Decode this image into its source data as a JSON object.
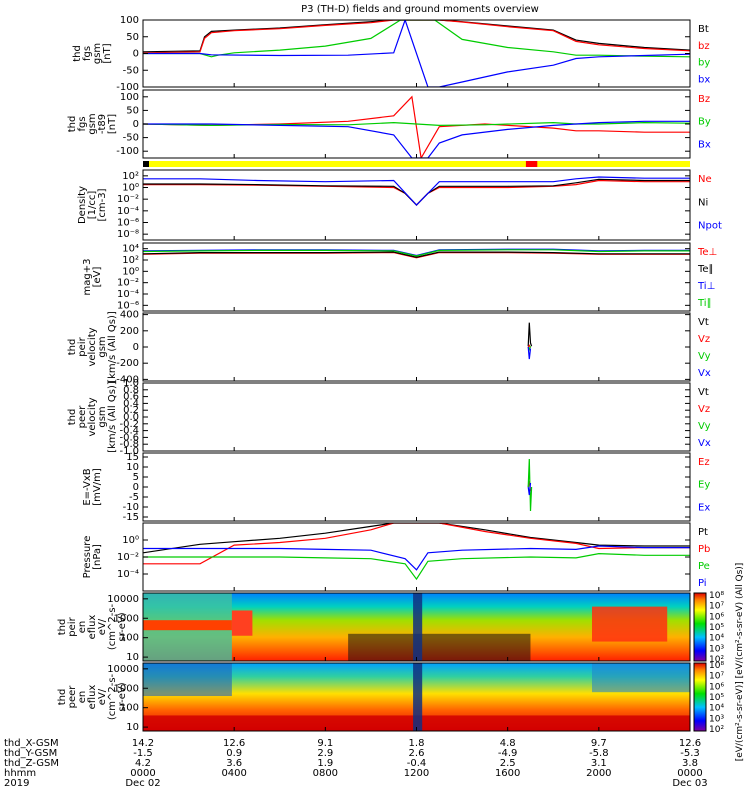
{
  "title": "P3 (TH-D) fields and ground moments overview",
  "chart_data": [
    {
      "type": "line",
      "ylabel_lines": [
        "thd",
        "fgs",
        "gsm",
        "[nT]"
      ],
      "ylim": [
        -100,
        100
      ],
      "ticks": [
        "100",
        "50",
        "0",
        "-50",
        "-100"
      ],
      "tick_values": [
        100,
        50,
        0,
        -50,
        -100
      ],
      "log": false,
      "series": [
        {
          "name": "Bt",
          "color": "#000000",
          "x": [
            0,
            2.5,
            2.7,
            3,
            4,
            6,
            8,
            10,
            11,
            12,
            13,
            14,
            16,
            18,
            19,
            20,
            22,
            24
          ],
          "y": [
            5,
            8,
            50,
            66,
            70,
            76,
            86,
            95,
            100,
            100,
            100,
            95,
            82,
            70,
            40,
            30,
            18,
            10
          ]
        },
        {
          "name": "bz",
          "color": "#ff0000",
          "x": [
            0,
            2.5,
            2.7,
            3,
            4,
            6,
            8,
            10,
            11,
            12,
            13,
            14,
            16,
            18,
            19,
            20,
            22,
            24
          ],
          "y": [
            2,
            5,
            45,
            62,
            68,
            74,
            84,
            92,
            100,
            100,
            100,
            94,
            80,
            68,
            36,
            26,
            15,
            8
          ]
        },
        {
          "name": "by",
          "color": "#00cc00",
          "x": [
            0,
            2.5,
            3,
            3.3,
            4,
            6,
            8,
            10,
            11.3,
            12.8,
            14,
            16,
            18,
            19,
            20,
            22,
            24
          ],
          "y": [
            0,
            0,
            -10,
            -5,
            2,
            10,
            22,
            45,
            100,
            100,
            42,
            18,
            5,
            -5,
            -5,
            -8,
            -10
          ]
        },
        {
          "name": "bx",
          "color": "#0000ff",
          "x": [
            0,
            2.5,
            3,
            6,
            9,
            11,
            11.5,
            12.5,
            13,
            14,
            16,
            18,
            19,
            20,
            22,
            24
          ],
          "y": [
            0,
            0,
            -4,
            -6,
            -5,
            2,
            100,
            -100,
            -100,
            -85,
            -55,
            -35,
            -15,
            -10,
            -6,
            -2
          ]
        }
      ]
    },
    {
      "type": "line",
      "ylabel_lines": [
        "thd",
        "fgs",
        "gsm",
        "-t89",
        "[nT]"
      ],
      "ylim": [
        -125,
        125
      ],
      "ticks": [
        "100",
        "50",
        "0",
        "-50",
        "-100"
      ],
      "tick_values": [
        100,
        50,
        0,
        -50,
        -100
      ],
      "log": false,
      "series": [
        {
          "name": "Bz",
          "color": "#ff0000",
          "x": [
            0,
            3,
            6,
            9,
            11,
            11.8,
            12.2,
            13,
            15,
            18,
            19,
            20,
            22,
            24
          ],
          "y": [
            0,
            -5,
            0,
            10,
            30,
            100,
            -125,
            -10,
            0,
            -15,
            -25,
            -25,
            -30,
            -30
          ]
        },
        {
          "name": "By",
          "color": "#00cc00",
          "x": [
            0,
            3,
            6,
            9,
            11,
            12,
            13,
            15,
            18,
            19,
            20,
            22,
            24
          ],
          "y": [
            0,
            -5,
            -2,
            -3,
            5,
            0,
            -5,
            -3,
            5,
            0,
            0,
            5,
            3
          ]
        },
        {
          "name": "Bx",
          "color": "#0000ff",
          "x": [
            0,
            3,
            6,
            9,
            11,
            11.8,
            12.5,
            13,
            14,
            16,
            18,
            19,
            20,
            22,
            24
          ],
          "y": [
            0,
            0,
            -5,
            -10,
            -40,
            -125,
            -125,
            -70,
            -40,
            -20,
            -5,
            0,
            5,
            10,
            10
          ]
        }
      ]
    },
    {
      "type": "line",
      "ylabel_lines": [
        "Density",
        "[1/cc]",
        "[cm-3]"
      ],
      "ylim": [
        -9,
        3
      ],
      "ticks": [
        "10²",
        "10⁰",
        "10⁻²",
        "10⁻⁴",
        "10⁻⁶",
        "10⁻⁸"
      ],
      "tick_values": [
        2,
        0,
        -2,
        -4,
        -6,
        -8
      ],
      "log": true,
      "series": [
        {
          "name": "Ne",
          "color": "#ff0000",
          "x": [
            0,
            2.5,
            5,
            8,
            11,
            11.5,
            12,
            12.5,
            13,
            16,
            18,
            19,
            20,
            22,
            24
          ],
          "y": [
            0.5,
            0.5,
            0.4,
            0.2,
            0,
            -1,
            -3,
            -1,
            0,
            0,
            0.2,
            0.5,
            1.2,
            1,
            1
          ]
        },
        {
          "name": "Ni",
          "color": "#000000",
          "x": [
            0,
            2.5,
            5,
            8,
            11,
            11.5,
            12,
            12.5,
            13,
            16,
            18,
            19,
            20,
            22,
            24
          ],
          "y": [
            0.6,
            0.6,
            0.5,
            0.3,
            0.2,
            -1,
            -3,
            -1,
            0.2,
            0.2,
            0.3,
            0.8,
            1.4,
            1.2,
            1.2
          ]
        },
        {
          "name": "Npot",
          "color": "#0000ff",
          "x": [
            0,
            2.5,
            5,
            8,
            11,
            12,
            13,
            16,
            18,
            19,
            20,
            22,
            24
          ],
          "y": [
            1.5,
            1.5,
            1.2,
            1.0,
            1.2,
            -3,
            1.0,
            1.0,
            1.0,
            1.5,
            1.8,
            1.6,
            1.6
          ]
        }
      ]
    },
    {
      "type": "line",
      "ylabel_lines": [
        "mag+3",
        "[eV]"
      ],
      "ylim": [
        -7,
        5
      ],
      "ticks": [
        "10⁴",
        "10²",
        "10⁰",
        "10⁻²",
        "10⁻⁴",
        "10⁻⁶"
      ],
      "tick_values": [
        4,
        2,
        0,
        -2,
        -4,
        -6
      ],
      "log": true,
      "series": [
        {
          "name": "Te⊥",
          "color": "#ff0000",
          "x": [
            0,
            2.5,
            5,
            8,
            11,
            12,
            13,
            16,
            18,
            20,
            22,
            24
          ],
          "y": [
            3,
            3.2,
            3.2,
            3.2,
            3.3,
            2.4,
            3.3,
            3.3,
            3.2,
            3.0,
            3.0,
            3.0
          ]
        },
        {
          "name": "Te∥",
          "color": "#000000",
          "x": [
            0,
            2.5,
            5,
            8,
            11,
            12,
            13,
            16,
            18,
            20,
            22,
            24
          ],
          "y": [
            3.1,
            3.3,
            3.3,
            3.3,
            3.4,
            2.5,
            3.4,
            3.4,
            3.3,
            3.1,
            3.1,
            3.1
          ]
        },
        {
          "name": "Ti⊥",
          "color": "#0000ff",
          "x": [
            0,
            2.5,
            5,
            8,
            11,
            12,
            13,
            16,
            18,
            20,
            22,
            24
          ],
          "y": [
            3.6,
            3.7,
            3.8,
            3.8,
            3.7,
            2.8,
            3.8,
            3.9,
            3.9,
            3.6,
            3.7,
            3.7
          ]
        },
        {
          "name": "Ti∥",
          "color": "#00cc00",
          "x": [
            0,
            2.5,
            5,
            8,
            11,
            12,
            13,
            16,
            18,
            20,
            22,
            24
          ],
          "y": [
            3.5,
            3.6,
            3.7,
            3.7,
            3.6,
            2.7,
            3.7,
            3.8,
            3.8,
            3.5,
            3.6,
            3.6
          ]
        }
      ]
    },
    {
      "type": "line",
      "ylabel_lines": [
        "thd",
        "peir",
        "velocity",
        "gsm",
        "[km/s (All Qs)]"
      ],
      "ylim": [
        -420,
        420
      ],
      "ticks": [
        "400",
        "200",
        "0",
        "-200",
        "-400"
      ],
      "tick_values": [
        400,
        200,
        0,
        -200,
        -400
      ],
      "log": false,
      "series": [
        {
          "name": "Vt",
          "color": "#000000",
          "x": [
            16.9,
            16.95,
            17.0,
            17.05
          ],
          "y": [
            10,
            300,
            50,
            10
          ]
        },
        {
          "name": "Vz",
          "color": "#ff0000",
          "x": [
            16.9,
            16.95,
            17.0
          ],
          "y": [
            0,
            20,
            -10
          ]
        },
        {
          "name": "Vy",
          "color": "#00cc00",
          "x": [
            16.9,
            16.95,
            17.0
          ],
          "y": [
            0,
            -30,
            10
          ]
        },
        {
          "name": "Vx",
          "color": "#0000ff",
          "x": [
            16.9,
            16.95,
            17.0
          ],
          "y": [
            0,
            -150,
            -20
          ]
        }
      ]
    },
    {
      "type": "line",
      "ylabel_lines": [
        "thd",
        "peer",
        "velocity",
        "gsm",
        "[km/s (All Qs)]"
      ],
      "ylim": [
        -1,
        1
      ],
      "ticks": [
        "1.0",
        "0.8",
        "0.6",
        "0.4",
        "0.2",
        "0.0",
        "-0.2",
        "-0.4",
        "-0.6",
        "-0.8",
        "-1.0"
      ],
      "tick_values": [
        1,
        0.8,
        0.6,
        0.4,
        0.2,
        0,
        -0.2,
        -0.4,
        -0.6,
        -0.8,
        -1
      ],
      "log": false,
      "series": [
        {
          "name": "Vt",
          "color": "#000000",
          "x": [],
          "y": []
        },
        {
          "name": "Vz",
          "color": "#ff0000",
          "x": [],
          "y": []
        },
        {
          "name": "Vy",
          "color": "#00cc00",
          "x": [],
          "y": []
        },
        {
          "name": "Vx",
          "color": "#0000ff",
          "x": [],
          "y": []
        }
      ]
    },
    {
      "type": "line",
      "ylabel_lines": [
        "E=-VxB",
        "[mV/m]"
      ],
      "ylim": [
        -17,
        17
      ],
      "ticks": [
        "15",
        "10",
        "5",
        "0",
        "-5",
        "-10",
        "-15"
      ],
      "tick_values": [
        15,
        10,
        5,
        0,
        -5,
        -10,
        -15
      ],
      "log": false,
      "series": [
        {
          "name": "Ez",
          "color": "#ff0000",
          "x": [
            16.9,
            16.95,
            17.0
          ],
          "y": [
            0,
            3,
            -2
          ]
        },
        {
          "name": "Ey",
          "color": "#00cc00",
          "x": [
            16.9,
            16.95,
            17.0,
            17.05
          ],
          "y": [
            0,
            14,
            -12,
            0
          ]
        },
        {
          "name": "Ex",
          "color": "#0000ff",
          "x": [
            16.9,
            16.95,
            17.0
          ],
          "y": [
            0,
            -4,
            2
          ]
        }
      ]
    },
    {
      "type": "line",
      "ylabel_lines": [
        "Pressure",
        "[nPa]"
      ],
      "ylim": [
        -6,
        2
      ],
      "ticks": [
        "10⁰",
        "10⁻²",
        "10⁻⁴"
      ],
      "tick_values": [
        0,
        -2,
        -4
      ],
      "log": true,
      "series": [
        {
          "name": "Pt",
          "color": "#000000",
          "x": [
            0,
            2.5,
            4,
            6,
            8,
            10,
            11,
            12,
            13,
            15,
            17,
            19,
            20,
            22,
            24
          ],
          "y": [
            -1.5,
            -0.5,
            -0.2,
            0.2,
            0.8,
            1.6,
            2,
            2,
            2,
            1.2,
            0.3,
            -0.3,
            -0.6,
            -0.7,
            -0.7
          ]
        },
        {
          "name": "Pb",
          "color": "#ff0000",
          "x": [
            0,
            2.5,
            4,
            6,
            8,
            10,
            11,
            12,
            13,
            15,
            17,
            19,
            20,
            22,
            24
          ],
          "y": [
            -2.8,
            -2.8,
            -0.6,
            -0.3,
            0.2,
            1.2,
            2,
            2,
            2,
            1.0,
            0.2,
            -0.4,
            -1,
            -0.9,
            -0.9
          ]
        },
        {
          "name": "Pe",
          "color": "#00cc00",
          "x": [
            0,
            2.5,
            4,
            6,
            8,
            10,
            11.5,
            12,
            12.5,
            14,
            17,
            19,
            20,
            22,
            24
          ],
          "y": [
            -2.0,
            -2.0,
            -2.0,
            -2.0,
            -2.1,
            -2.2,
            -2.8,
            -4.6,
            -2.5,
            -2.2,
            -2.0,
            -2.1,
            -1.6,
            -1.8,
            -1.8
          ]
        },
        {
          "name": "Pi",
          "color": "#0000ff",
          "x": [
            0,
            2.5,
            4,
            6,
            8,
            10,
            11.5,
            12,
            12.5,
            14,
            17,
            19,
            20,
            22,
            24
          ],
          "y": [
            -1.0,
            -1.0,
            -1.0,
            -1.0,
            -1.1,
            -1.2,
            -2.2,
            -3.5,
            -1.5,
            -1.2,
            -1.0,
            -1.1,
            -0.7,
            -0.9,
            -0.9
          ]
        }
      ]
    },
    {
      "type": "heatmap",
      "ylabel_lines": [
        "thd",
        "peir",
        "en",
        "eflux",
        "eV/",
        "(cm^2-s-",
        "sr-eV)"
      ],
      "ticks": [
        "10000",
        "1000",
        "100",
        "10"
      ],
      "colorbar_ticks": [
        "10⁸",
        "10⁷",
        "10⁶",
        "10⁵",
        "10⁴",
        "10³",
        "10²"
      ]
    },
    {
      "type": "heatmap",
      "ylabel_lines": [
        "thd",
        "peer",
        "en",
        "eflux",
        "eV/",
        "(cm^2-s-",
        "sr-eV)"
      ],
      "ticks": [
        "10000",
        "1000",
        "100",
        "10"
      ],
      "colorbar_ticks": [
        "10⁸",
        "10⁷",
        "10⁶",
        "10⁵",
        "10⁴",
        "10³",
        "10²"
      ]
    }
  ],
  "colorbar_label": "[eV/(cm²-s-sr-eV)] [eV/(cm²-s-sr-eV) (All Qs)]",
  "xaxis": {
    "rows": [
      {
        "label": "thd_X-GSM",
        "values": [
          "14.2",
          "12.6",
          "9.1",
          "1.8",
          "4.8",
          "9.7",
          "12.6"
        ]
      },
      {
        "label": "thd_Y-GSM",
        "values": [
          "-1.5",
          "0.9",
          "2.9",
          "2.6",
          "-4.9",
          "-5.8",
          "-5.3"
        ]
      },
      {
        "label": "thd_Z-GSM",
        "values": [
          "4.2",
          "3.6",
          "1.9",
          "-0.4",
          "2.5",
          "3.1",
          "3.8"
        ]
      },
      {
        "label": "hhmm",
        "values": [
          "0000",
          "0400",
          "0800",
          "1200",
          "1600",
          "2000",
          "0000"
        ]
      },
      {
        "label": "2019",
        "values": [
          "Dec 02",
          "",
          "",
          "",
          "",
          "",
          "Dec 03"
        ]
      }
    ]
  },
  "bar_status": {
    "colors": [
      "#000000",
      "#ffff00",
      "#ff0000"
    ]
  }
}
